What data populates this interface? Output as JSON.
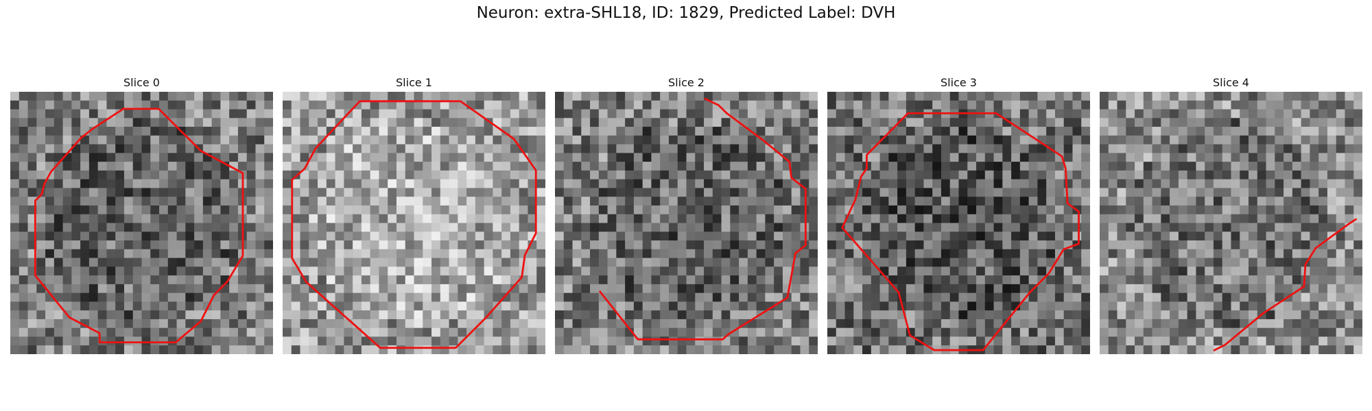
{
  "figure": {
    "title": "Neuron: extra-SHL18, ID: 1829, Predicted Label: DVH"
  },
  "colors": {
    "contour": "#ee1111"
  },
  "panels": [
    {
      "title": "Slice 0"
    },
    {
      "title": "Slice 1"
    },
    {
      "title": "Slice 2"
    },
    {
      "title": "Slice 3"
    },
    {
      "title": "Slice 4"
    }
  ]
}
